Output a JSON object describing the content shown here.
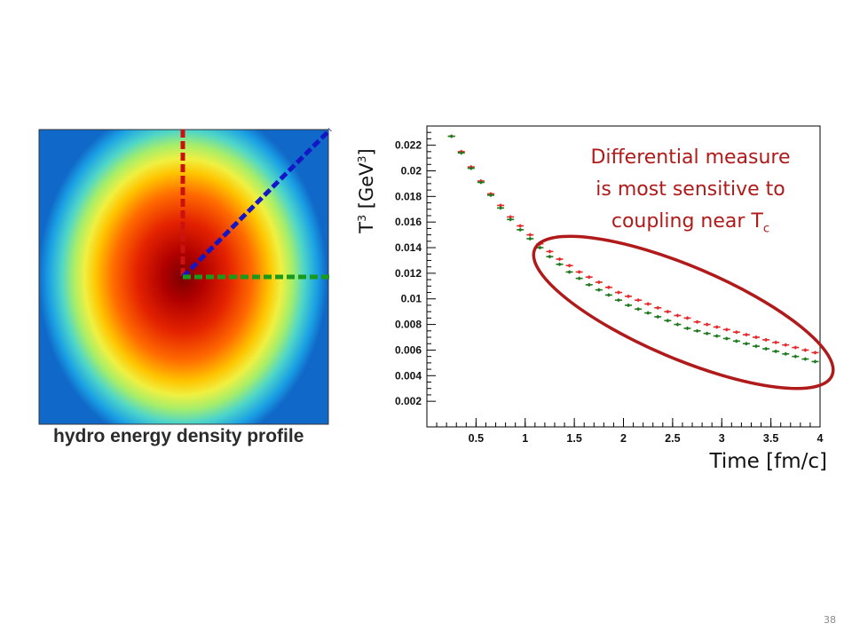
{
  "heatmap": {
    "caption": "hydro energy density profile"
  },
  "slide": {
    "page_number": "38"
  },
  "annotation": {
    "line1": "Differential measure",
    "line2": "is most sensitive to",
    "line3_text": "coupling near T",
    "line3_sub": "c"
  },
  "axes_text": {
    "ylabel_base": "T",
    "ylabel_sup": "3",
    "ylabel_unit_open": " [GeV",
    "ylabel_unit_sup": "3",
    "ylabel_unit_close": "]",
    "xlabel": "Time [fm/c]"
  },
  "colors": {
    "series_red": "#e52b2b",
    "series_green": "#1f7a1f",
    "ellipse": "#b11a1a",
    "dash_red": "#cc1111",
    "dash_blue": "#1515c8",
    "dash_green": "#1a9a1a"
  },
  "chart_data": {
    "type": "scatter",
    "x_range": [
      0,
      4
    ],
    "y_range": [
      0,
      0.0235
    ],
    "x_ticks": [
      "0.5",
      "1",
      "1.5",
      "2",
      "2.5",
      "3",
      "3.5",
      "4"
    ],
    "y_ticks": [
      "0.002",
      "0.004",
      "0.006",
      "0.008",
      "0.01",
      "0.012",
      "0.014",
      "0.016",
      "0.018",
      "0.02",
      "0.022"
    ],
    "grid": false,
    "series": [
      {
        "color": "red",
        "x": [
          0.25,
          0.35,
          0.45,
          0.55,
          0.65,
          0.75,
          0.85,
          0.95,
          1.05,
          1.15,
          1.25,
          1.35,
          1.45,
          1.55,
          1.65,
          1.75,
          1.85,
          1.95,
          2.05,
          2.15,
          2.25,
          2.35,
          2.45,
          2.55,
          2.65,
          2.75,
          2.85,
          2.95,
          3.05,
          3.15,
          3.25,
          3.35,
          3.45,
          3.55,
          3.65,
          3.75,
          3.85,
          3.95
        ],
        "y": [
          0.0227,
          0.0215,
          0.0203,
          0.0192,
          0.0182,
          0.0173,
          0.0164,
          0.0157,
          0.015,
          0.0143,
          0.0137,
          0.0131,
          0.0126,
          0.0121,
          0.0117,
          0.0113,
          0.0109,
          0.0105,
          0.0102,
          0.0099,
          0.0096,
          0.0093,
          0.009,
          0.0087,
          0.0085,
          0.0082,
          0.008,
          0.0078,
          0.0076,
          0.0074,
          0.0072,
          0.007,
          0.0068,
          0.0066,
          0.0064,
          0.0062,
          0.006,
          0.0058
        ]
      },
      {
        "color": "green",
        "x": [
          0.25,
          0.35,
          0.45,
          0.55,
          0.65,
          0.75,
          0.85,
          0.95,
          1.05,
          1.15,
          1.25,
          1.35,
          1.45,
          1.55,
          1.65,
          1.75,
          1.85,
          1.95,
          2.05,
          2.15,
          2.25,
          2.35,
          2.45,
          2.55,
          2.65,
          2.75,
          2.85,
          2.95,
          3.05,
          3.15,
          3.25,
          3.35,
          3.45,
          3.55,
          3.65,
          3.75,
          3.85,
          3.95
        ],
        "y": [
          0.0227,
          0.0214,
          0.0202,
          0.0191,
          0.0181,
          0.0171,
          0.0162,
          0.0154,
          0.0147,
          0.014,
          0.0133,
          0.0127,
          0.0121,
          0.0116,
          0.0111,
          0.0107,
          0.0103,
          0.0099,
          0.0095,
          0.0092,
          0.0089,
          0.0086,
          0.0083,
          0.008,
          0.0077,
          0.0075,
          0.0073,
          0.0071,
          0.0069,
          0.0067,
          0.0065,
          0.0063,
          0.0061,
          0.0059,
          0.0057,
          0.0055,
          0.0053,
          0.0051
        ]
      }
    ]
  }
}
